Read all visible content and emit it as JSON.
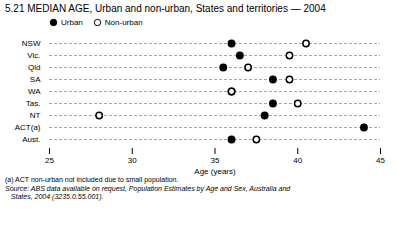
{
  "chart_data": {
    "type": "dot",
    "title": "5.21  MEDIAN AGE, Urban and non-urban, States and territories — 2004",
    "xlabel": "Age (years)",
    "categories": [
      "NSW",
      "Vic.",
      "Qld",
      "SA",
      "WA",
      "Tas.",
      "NT",
      "ACT(a)",
      "Aust."
    ],
    "series": [
      {
        "name": "Urban",
        "color": "#000000",
        "marker": "filled",
        "values": [
          36.0,
          36.5,
          35.5,
          38.5,
          36.0,
          38.5,
          38.0,
          44.0,
          36.0
        ]
      },
      {
        "name": "Non-urban",
        "color": "#000000",
        "marker": "open",
        "values": [
          40.5,
          39.5,
          37.0,
          39.5,
          36.0,
          40.0,
          28.0,
          null,
          37.5
        ]
      }
    ],
    "xlim": [
      25,
      45
    ],
    "xticks": [
      25,
      30,
      35,
      40,
      45
    ],
    "grid": true,
    "legend": "upper left",
    "annotations": [
      "(a) ACT non-urban not included due to small population.",
      "Source: ABS data available on request, Population Estimates by Age and Sex, Australia and\n   States, 2004 (3235.0.55.001)."
    ]
  }
}
